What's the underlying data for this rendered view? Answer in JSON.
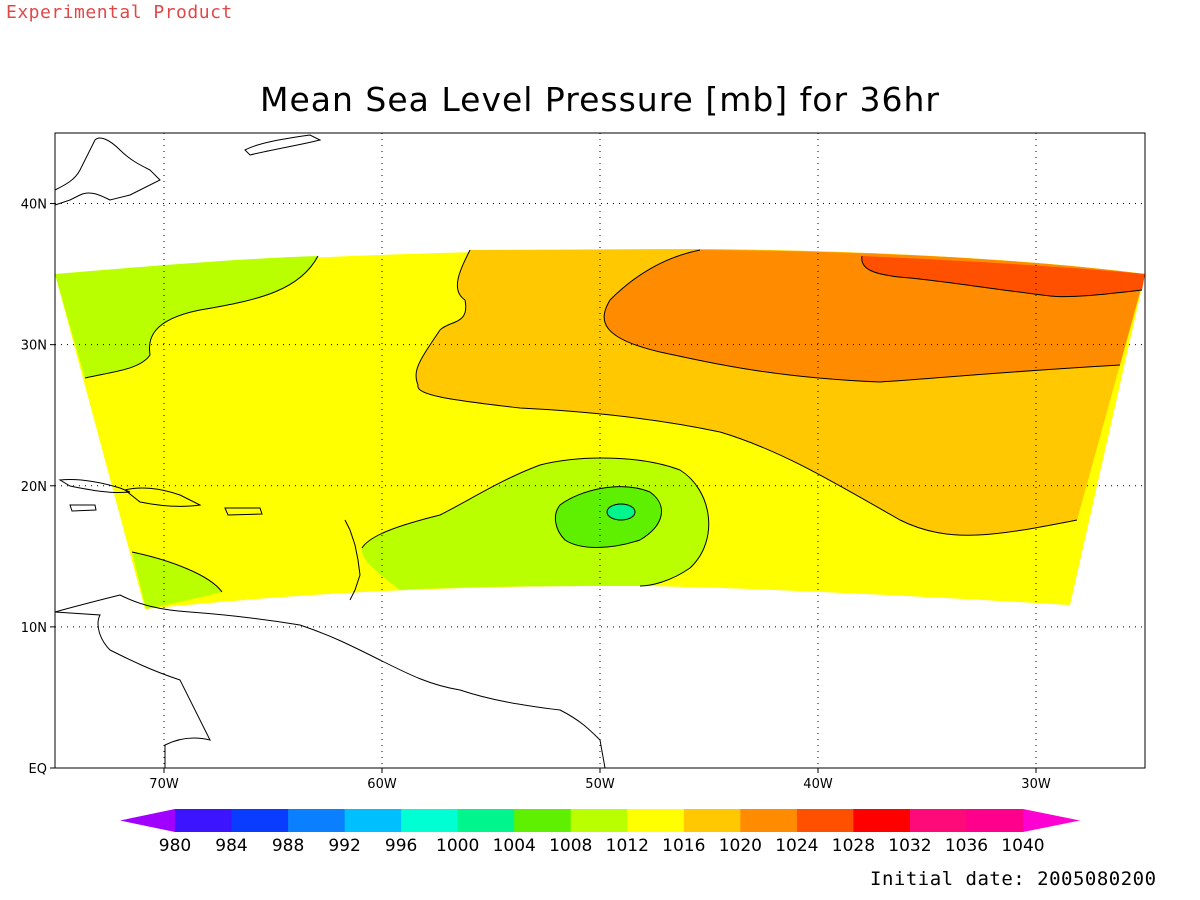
{
  "banner": "Experimental Product",
  "title": "Mean Sea Level Pressure [mb] for 36hr",
  "footer": "Initial date: 2005080200",
  "map": {
    "lon_range": [
      -75,
      -25
    ],
    "lat_range": [
      0,
      45
    ],
    "lon_ticks": [
      {
        "value": -70,
        "label": "70W"
      },
      {
        "value": -60,
        "label": "60W"
      },
      {
        "value": -50,
        "label": "50W"
      },
      {
        "value": -40,
        "label": "40W"
      },
      {
        "value": -30,
        "label": "30W"
      }
    ],
    "lat_ticks": [
      {
        "value": 0,
        "label": "EQ"
      },
      {
        "value": 10,
        "label": "10N"
      },
      {
        "value": 20,
        "label": "20N"
      },
      {
        "value": 30,
        "label": "30N"
      },
      {
        "value": 40,
        "label": "40N"
      }
    ],
    "grid": true,
    "features": {
      "low_center": {
        "lon": -49,
        "lat": 18,
        "value": 1004
      },
      "high_region": {
        "lon": -35,
        "lat": 34,
        "value": 1028
      }
    }
  },
  "colorbar": {
    "labels": [
      "980",
      "984",
      "988",
      "992",
      "996",
      "1000",
      "1004",
      "1008",
      "1012",
      "1016",
      "1020",
      "1024",
      "1028",
      "1032",
      "1036",
      "1040"
    ],
    "colors": [
      "#a000ff",
      "#3c14ff",
      "#0a3cff",
      "#0a7fff",
      "#00bfff",
      "#00ffd2",
      "#00f58c",
      "#5ef000",
      "#b9ff00",
      "#ffff00",
      "#ffc800",
      "#ff8c00",
      "#ff5000",
      "#ff0000",
      "#ff0a78",
      "#ff008c",
      "#ff00d2"
    ]
  }
}
